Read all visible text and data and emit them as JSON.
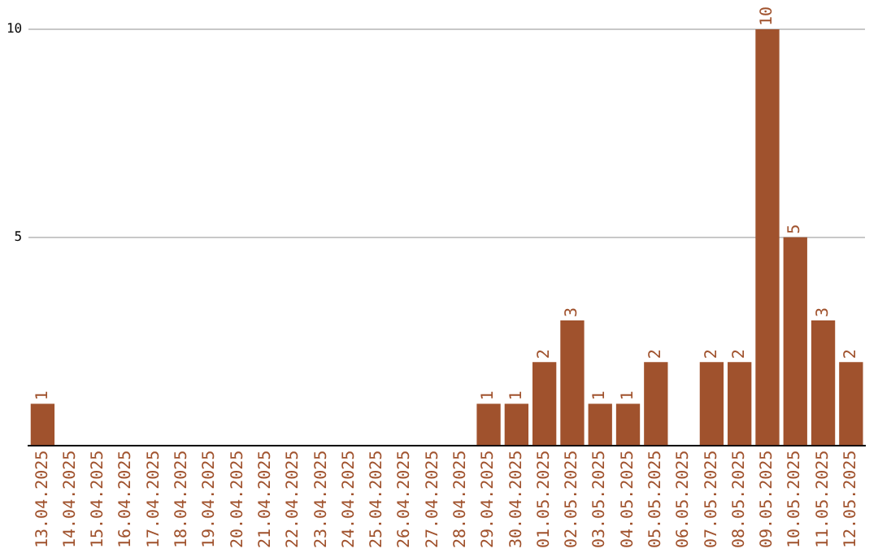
{
  "chart_data": {
    "type": "bar",
    "categories": [
      "13.04.2025",
      "14.04.2025",
      "15.04.2025",
      "16.04.2025",
      "17.04.2025",
      "18.04.2025",
      "19.04.2025",
      "20.04.2025",
      "21.04.2025",
      "22.04.2025",
      "23.04.2025",
      "24.04.2025",
      "25.04.2025",
      "26.04.2025",
      "27.04.2025",
      "28.04.2025",
      "29.04.2025",
      "30.04.2025",
      "01.05.2025",
      "02.05.2025",
      "03.05.2025",
      "04.05.2025",
      "05.05.2025",
      "06.05.2025",
      "07.05.2025",
      "08.05.2025",
      "09.05.2025",
      "10.05.2025",
      "11.05.2025",
      "12.05.2025"
    ],
    "values": [
      1,
      0,
      0,
      0,
      0,
      0,
      0,
      0,
      0,
      0,
      0,
      0,
      0,
      0,
      0,
      0,
      1,
      1,
      2,
      3,
      1,
      1,
      2,
      0,
      2,
      2,
      10,
      5,
      3,
      2
    ],
    "value_labels": [
      "1",
      null,
      null,
      null,
      null,
      null,
      null,
      null,
      null,
      null,
      null,
      null,
      null,
      null,
      null,
      null,
      "1",
      "1",
      "2",
      "3",
      "1",
      "1",
      "2",
      null,
      "2",
      "2",
      "10",
      "5",
      "3",
      "2"
    ],
    "color": "#a0522d",
    "ylim": [
      0,
      10
    ],
    "yticks": [
      5,
      10
    ],
    "grid": "y",
    "legend": false
  }
}
